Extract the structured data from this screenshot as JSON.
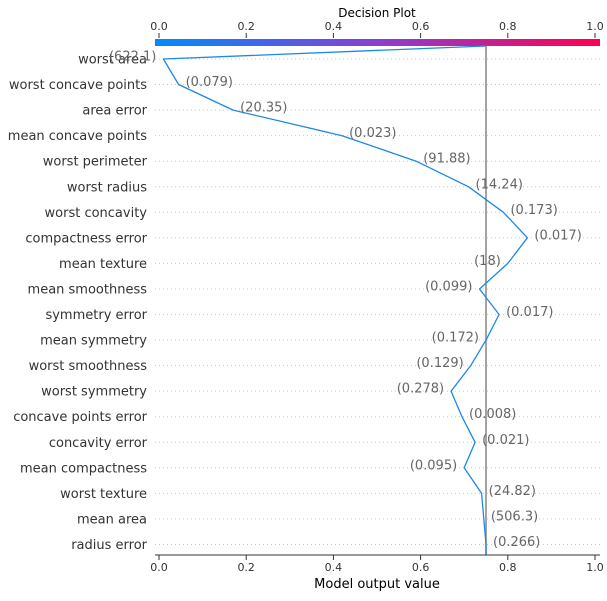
{
  "chart_data": {
    "type": "line",
    "title": "Decision Plot",
    "xlabel": "Model output value",
    "xlim": [
      0.0,
      1.0
    ],
    "x_ticks": [
      "0.0",
      "0.2",
      "0.4",
      "0.6",
      "0.8",
      "1.0"
    ],
    "x_tick_values": [
      0.0,
      0.2,
      0.4,
      0.6,
      0.8,
      1.0
    ],
    "base_value": 0.75,
    "colorbar": {
      "from": "#008bfb",
      "to": "#ff0052",
      "range": [
        0.0,
        1.0
      ]
    },
    "line_color": "#1e88e5",
    "grid": "dotted horizontal per feature",
    "features": [
      {
        "name": "worst area",
        "value": "(622.1)",
        "cum_output": 0.01
      },
      {
        "name": "worst concave points",
        "value": "(0.079)",
        "cum_output": 0.045
      },
      {
        "name": "area error",
        "value": "(20.35)",
        "cum_output": 0.17
      },
      {
        "name": "mean concave points",
        "value": "(0.023)",
        "cum_output": 0.42
      },
      {
        "name": "worst perimeter",
        "value": "(91.88)",
        "cum_output": 0.59
      },
      {
        "name": "worst radius",
        "value": "(14.24)",
        "cum_output": 0.71
      },
      {
        "name": "worst concavity",
        "value": "(0.173)",
        "cum_output": 0.79
      },
      {
        "name": "compactness error",
        "value": "(0.017)",
        "cum_output": 0.845
      },
      {
        "name": "mean texture",
        "value": "(18)",
        "cum_output": 0.8
      },
      {
        "name": "mean smoothness",
        "value": "(0.099)",
        "cum_output": 0.735
      },
      {
        "name": "symmetry error",
        "value": "(0.017)",
        "cum_output": 0.78
      },
      {
        "name": "mean symmetry",
        "value": "(0.172)",
        "cum_output": 0.75
      },
      {
        "name": "worst smoothness",
        "value": "(0.129)",
        "cum_output": 0.715
      },
      {
        "name": "worst symmetry",
        "value": "(0.278)",
        "cum_output": 0.67
      },
      {
        "name": "concave points error",
        "value": "(0.008)",
        "cum_output": 0.695
      },
      {
        "name": "concavity error",
        "value": "(0.021)",
        "cum_output": 0.725
      },
      {
        "name": "mean compactness",
        "value": "(0.095)",
        "cum_output": 0.7
      },
      {
        "name": "worst texture",
        "value": "(24.82)",
        "cum_output": 0.74
      },
      {
        "name": "mean area",
        "value": "(506.3)",
        "cum_output": 0.745
      },
      {
        "name": "radius error",
        "value": "(0.266)",
        "cum_output": 0.75
      }
    ],
    "final_output": 0.75
  }
}
